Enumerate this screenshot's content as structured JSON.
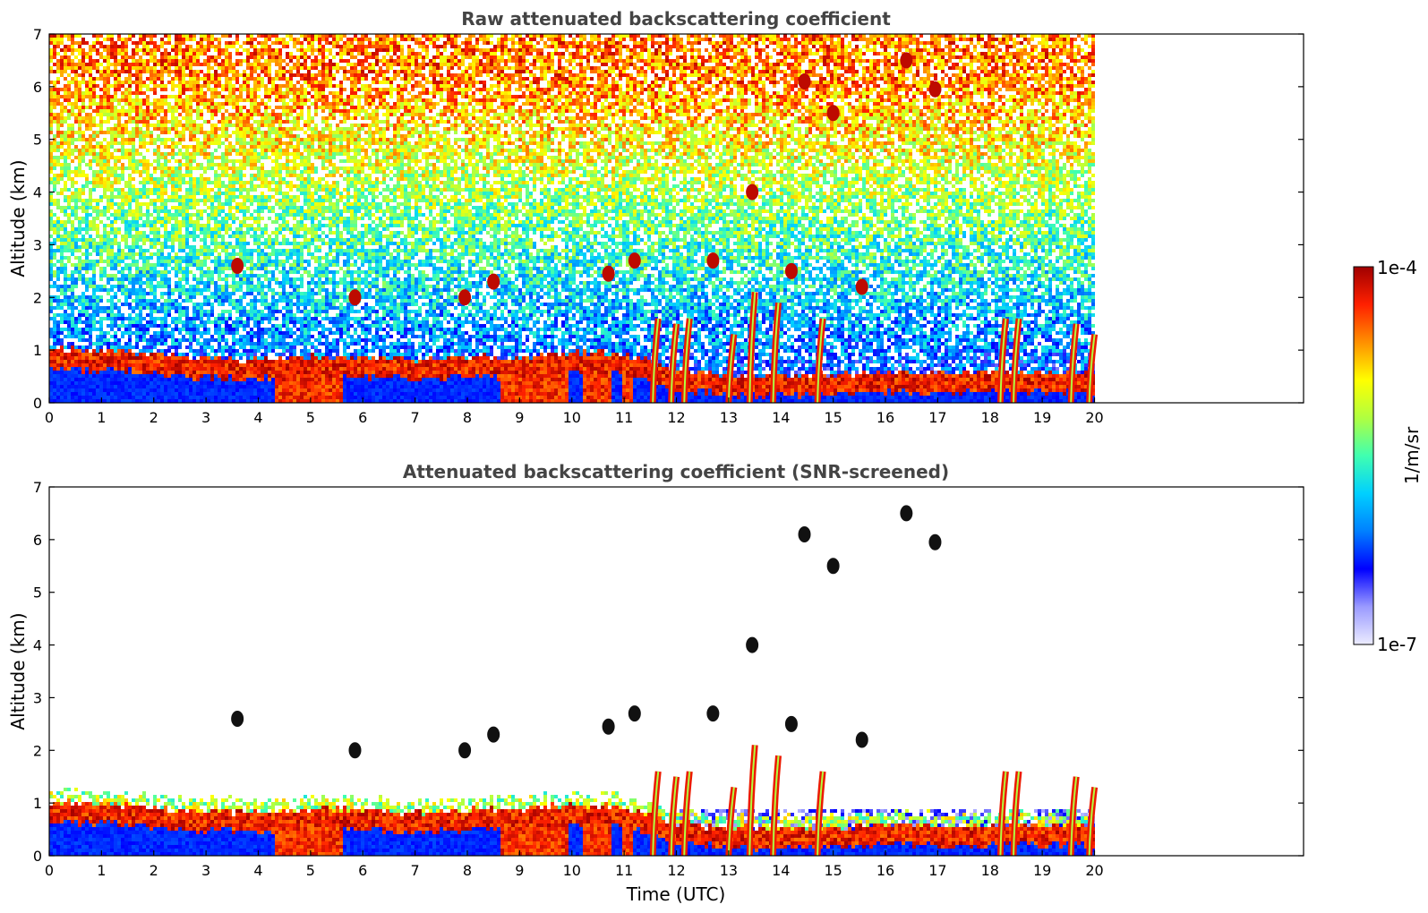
{
  "chart_data": [
    {
      "type": "heatmap",
      "title": "Raw attenuated backscattering coefficient",
      "xlabel": "",
      "ylabel": "Altitude (km)",
      "xlim": [
        0,
        24
      ],
      "ylim": [
        0,
        7
      ],
      "xticks": [
        "0",
        "1",
        "2",
        "3",
        "4",
        "5",
        "6",
        "7",
        "8",
        "9",
        "10",
        "11",
        "12",
        "13",
        "14",
        "15",
        "16",
        "17",
        "18",
        "19",
        "20"
      ],
      "yticks": [
        "0",
        "1",
        "2",
        "3",
        "4",
        "5",
        "6",
        "7"
      ],
      "data_end_time": 19.95,
      "boundary_layer_top_km": [
        [
          0,
          0.9
        ],
        [
          1.5,
          0.85
        ],
        [
          2.5,
          0.75
        ],
        [
          4,
          0.7
        ],
        [
          5,
          0.75
        ],
        [
          6,
          0.75
        ],
        [
          7,
          0.7
        ],
        [
          8,
          0.75
        ],
        [
          9,
          0.75
        ],
        [
          10,
          0.85
        ],
        [
          11,
          0.8
        ],
        [
          12,
          0.5
        ],
        [
          13,
          0.4
        ],
        [
          14,
          0.4
        ],
        [
          15,
          0.4
        ],
        [
          16,
          0.45
        ],
        [
          17,
          0.45
        ],
        [
          18,
          0.45
        ],
        [
          19,
          0.45
        ],
        [
          19.95,
          0.45
        ]
      ],
      "strong_precipitation_columns": [
        [
          4.35,
          5.6
        ],
        [
          8.6,
          9.95
        ],
        [
          10.2,
          10.75
        ],
        [
          10.95,
          11.15
        ]
      ],
      "rain_streaks": [
        [
          11.55,
          1.6
        ],
        [
          11.9,
          1.5
        ],
        [
          12.15,
          1.6
        ],
        [
          13.0,
          1.3
        ],
        [
          13.4,
          2.1
        ],
        [
          13.85,
          1.9
        ],
        [
          14.7,
          1.6
        ],
        [
          18.2,
          1.6
        ],
        [
          18.45,
          1.6
        ],
        [
          19.55,
          1.5
        ],
        [
          19.9,
          1.3
        ]
      ],
      "cloud_patches": [
        [
          3.6,
          2.6
        ],
        [
          5.85,
          2.0
        ],
        [
          7.95,
          2.0
        ],
        [
          8.5,
          2.3
        ],
        [
          10.7,
          2.45
        ],
        [
          11.2,
          2.7
        ],
        [
          12.7,
          2.7
        ],
        [
          13.45,
          4.0
        ],
        [
          14.2,
          2.5
        ],
        [
          15.55,
          2.2
        ],
        [
          15.0,
          5.5
        ],
        [
          16.4,
          6.5
        ],
        [
          16.95,
          5.95
        ],
        [
          14.45,
          6.1
        ]
      ]
    },
    {
      "type": "heatmap",
      "title": "Attenuated backscattering coefficient (SNR-screened)",
      "xlabel": "Time (UTC)",
      "ylabel": "Altitude (km)",
      "xlim": [
        0,
        24
      ],
      "ylim": [
        0,
        7
      ],
      "xticks": [
        "0",
        "1",
        "2",
        "3",
        "4",
        "5",
        "6",
        "7",
        "8",
        "9",
        "10",
        "11",
        "12",
        "13",
        "14",
        "15",
        "16",
        "17",
        "18",
        "19",
        "20"
      ],
      "yticks": [
        "0",
        "1",
        "2",
        "3",
        "4",
        "5",
        "6",
        "7"
      ]
    }
  ],
  "colorbar": {
    "label": "1/m/sr",
    "max_label": "1e-4",
    "min_label": "1e-7",
    "scale": "log",
    "colormap": [
      "#ececff",
      "#9a9aff",
      "#0000ff",
      "#0080ff",
      "#00d0ff",
      "#40ffb0",
      "#b0ff40",
      "#ffff00",
      "#ff9000",
      "#ff2000",
      "#a00000"
    ]
  }
}
